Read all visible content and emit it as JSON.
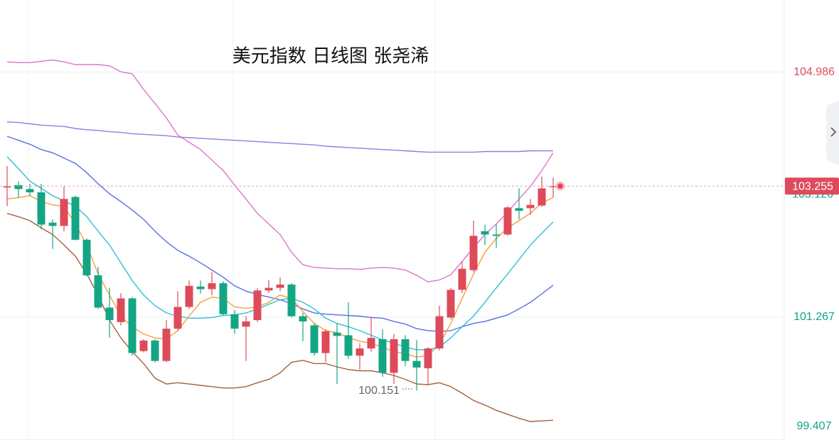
{
  "chart_data": {
    "type": "candlestick",
    "title": "美元指数 日线图 张尧浠",
    "up_color": "#dd4b5b",
    "down_color": "#14a585",
    "open": [
      103.24,
      103.27,
      103.21,
      103.16,
      102.7,
      102.65,
      103.09,
      102.44,
      101.9,
      101.41,
      101.19,
      101.55,
      100.75,
      100.91,
      100.6,
      101.09,
      101.42,
      101.73,
      101.69,
      101.78,
      101.31,
      101.12,
      101.22,
      101.67,
      101.71,
      101.76,
      101.28,
      101.14,
      100.72,
      101.03,
      100.99,
      100.68,
      100.79,
      100.93,
      100.42,
      100.93,
      100.6,
      100.49,
      100.79,
      101.26,
      101.68,
      101.98,
      102.57,
      102.52,
      102.52,
      102.92,
      102.92,
      102.96,
      103.24
    ],
    "high": [
      103.56,
      103.33,
      103.29,
      103.29,
      102.75,
      103.25,
      103.11,
      102.46,
      102.03,
      101.71,
      101.63,
      101.57,
      100.93,
      100.93,
      101.22,
      101.66,
      101.82,
      101.82,
      101.95,
      101.81,
      101.37,
      101.28,
      101.71,
      101.83,
      101.87,
      101.78,
      101.33,
      101.17,
      101.08,
      101.17,
      101.49,
      100.87,
      101.27,
      101.08,
      101.01,
      100.99,
      100.92,
      100.81,
      101.44,
      101.71,
      102.11,
      102.73,
      102.67,
      102.68,
      102.95,
      103.22,
      103.06,
      103.4,
      103.38
    ],
    "low": [
      102.95,
      103.08,
      103.11,
      102.6,
      102.3,
      102.57,
      102.43,
      101.89,
      101.39,
      100.95,
      101.14,
      100.68,
      100.73,
      100.58,
      100.58,
      101.06,
      101.39,
      101.62,
      101.6,
      101.29,
      101.01,
      100.6,
      101.19,
      101.63,
      101.66,
      101.26,
      100.9,
      100.68,
      100.58,
      100.25,
      100.63,
      100.47,
      100.74,
      100.36,
      100.25,
      100.52,
      100.151,
      100.23,
      100.76,
      101.23,
      101.63,
      101.95,
      102.36,
      102.32,
      102.5,
      102.75,
      102.82,
      102.94,
      103.08
    ],
    "close": [
      103.25,
      103.21,
      103.16,
      102.67,
      102.65,
      103.06,
      102.44,
      101.9,
      101.41,
      101.22,
      101.55,
      100.72,
      100.91,
      100.6,
      101.09,
      101.42,
      101.74,
      101.69,
      101.78,
      101.31,
      101.09,
      101.2,
      101.67,
      101.71,
      101.76,
      101.28,
      101.2,
      100.72,
      101.05,
      100.98,
      100.68,
      100.79,
      100.95,
      100.42,
      100.93,
      100.6,
      100.5,
      100.79,
      101.28,
      101.68,
      102.0,
      102.5,
      102.52,
      102.5,
      102.93,
      102.88,
      102.97,
      103.22,
      103.255
    ],
    "lines": [
      {
        "color": "#d877cd",
        "values": [
          105.14,
          105.13,
          105.13,
          105.15,
          105.17,
          105.14,
          105.1,
          105.1,
          105.1,
          105.08,
          104.99,
          104.96,
          104.72,
          104.51,
          104.29,
          104.03,
          103.92,
          103.81,
          103.65,
          103.49,
          103.27,
          103.06,
          102.84,
          102.68,
          102.52,
          102.25,
          102.06,
          102.02,
          102.01,
          102.0,
          102.0,
          101.99,
          102.01,
          102.02,
          102.01,
          101.98,
          101.9,
          101.8,
          101.83,
          101.91,
          102.11,
          102.32,
          102.52,
          102.68,
          102.86,
          103.06,
          103.25,
          103.49,
          103.76
        ]
      },
      {
        "color": "#9b79e0",
        "values": [
          104.23,
          104.22,
          104.2,
          104.18,
          104.17,
          104.16,
          104.13,
          104.11,
          104.1,
          104.08,
          104.07,
          104.05,
          104.04,
          104.03,
          104.02,
          104.0,
          103.99,
          103.98,
          103.97,
          103.96,
          103.95,
          103.94,
          103.93,
          103.92,
          103.91,
          103.9,
          103.89,
          103.88,
          103.86,
          103.85,
          103.84,
          103.83,
          103.82,
          103.81,
          103.8,
          103.79,
          103.78,
          103.77,
          103.77,
          103.77,
          103.77,
          103.77,
          103.78,
          103.78,
          103.78,
          103.78,
          103.79,
          103.79,
          103.79
        ]
      },
      {
        "color": "#5a6ee2",
        "values": [
          104.01,
          103.95,
          103.89,
          103.81,
          103.76,
          103.68,
          103.6,
          103.46,
          103.29,
          103.14,
          103.02,
          102.89,
          102.75,
          102.57,
          102.41,
          102.28,
          102.19,
          102.09,
          101.98,
          101.87,
          101.74,
          101.66,
          101.61,
          101.57,
          101.53,
          101.47,
          101.39,
          101.33,
          101.31,
          101.3,
          101.29,
          101.28,
          101.26,
          101.25,
          101.2,
          101.16,
          101.09,
          101.06,
          101.05,
          101.06,
          101.12,
          101.17,
          101.2,
          101.25,
          101.3,
          101.39,
          101.49,
          101.62,
          101.75
        ]
      },
      {
        "color": "#2cc0d4",
        "values": [
          103.7,
          103.52,
          103.33,
          103.22,
          103.11,
          103.03,
          102.95,
          102.79,
          102.57,
          102.36,
          102.09,
          101.82,
          101.6,
          101.44,
          101.33,
          101.28,
          101.25,
          101.25,
          101.26,
          101.29,
          101.3,
          101.33,
          101.39,
          101.46,
          101.53,
          101.55,
          101.49,
          101.39,
          101.25,
          101.17,
          101.12,
          101.06,
          100.99,
          100.92,
          100.87,
          100.81,
          100.77,
          100.77,
          100.81,
          100.95,
          101.12,
          101.28,
          101.49,
          101.71,
          101.92,
          102.14,
          102.36,
          102.54,
          102.71
        ]
      },
      {
        "color": "#f4a03c",
        "values": [
          103.06,
          103.08,
          103.11,
          103.02,
          102.97,
          102.95,
          102.68,
          102.36,
          101.92,
          101.6,
          101.28,
          101.12,
          101.01,
          100.95,
          100.93,
          101.06,
          101.28,
          101.49,
          101.57,
          101.55,
          101.42,
          101.4,
          101.42,
          101.49,
          101.6,
          101.55,
          101.35,
          101.17,
          101.06,
          101.03,
          100.95,
          100.9,
          100.87,
          100.81,
          100.74,
          100.71,
          100.66,
          100.68,
          100.85,
          101.17,
          101.55,
          101.92,
          102.25,
          102.46,
          102.62,
          102.73,
          102.84,
          103.0,
          103.08
        ]
      },
      {
        "color": "#a3613b",
        "values": [
          102.84,
          102.79,
          102.73,
          102.62,
          102.52,
          102.36,
          102.19,
          101.92,
          101.6,
          101.22,
          100.95,
          100.74,
          100.56,
          100.34,
          100.25,
          100.27,
          100.25,
          100.23,
          100.21,
          100.19,
          100.19,
          100.21,
          100.27,
          100.32,
          100.42,
          100.58,
          100.61,
          100.56,
          100.56,
          100.51,
          100.47,
          100.45,
          100.45,
          100.42,
          100.38,
          100.32,
          100.25,
          100.24,
          100.27,
          100.21,
          100.11,
          100.0,
          99.93,
          99.85,
          99.79,
          99.73,
          99.68,
          99.69,
          99.7
        ]
      }
    ],
    "ylim": [
      99.4,
      106.08
    ],
    "yticks": [
      104.986,
      101.267,
      99.407
    ],
    "grid": true,
    "current_price": 103.255,
    "secondary_price_label": 103.126
  }
}
